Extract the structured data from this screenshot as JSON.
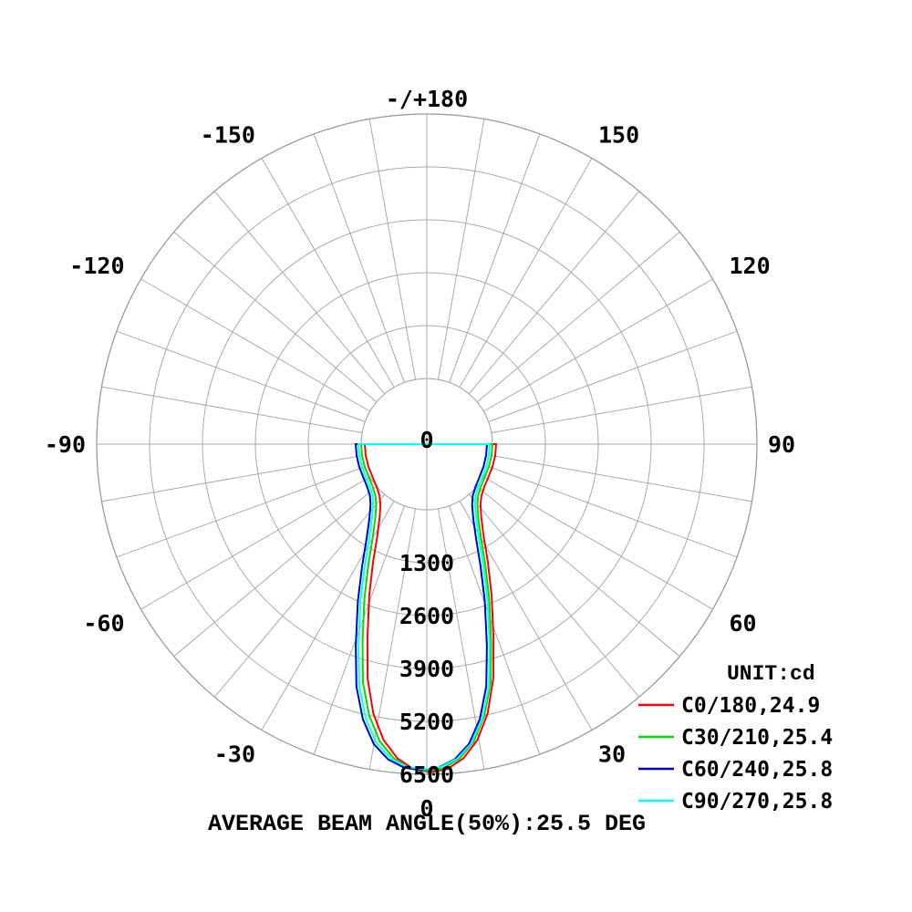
{
  "chart_data": {
    "type": "polar",
    "unit_label": "UNIT:cd",
    "footer": "AVERAGE BEAM ANGLE(50%):25.5 DEG",
    "angle_ticks": [
      {
        "angle": 180,
        "label": "-/+180"
      },
      {
        "angle": -150,
        "label": "-150"
      },
      {
        "angle": 150,
        "label": "150"
      },
      {
        "angle": -120,
        "label": "-120"
      },
      {
        "angle": 120,
        "label": "120"
      },
      {
        "angle": -90,
        "label": "-90"
      },
      {
        "angle": 90,
        "label": "90"
      },
      {
        "angle": -60,
        "label": "-60"
      },
      {
        "angle": 60,
        "label": "60"
      },
      {
        "angle": -30,
        "label": "-30"
      },
      {
        "angle": 30,
        "label": "30"
      },
      {
        "angle": 0,
        "label": "0"
      }
    ],
    "radial_ticks": [
      "0",
      "1300",
      "2600",
      "3900",
      "5200",
      "6500"
    ],
    "radial_values": [
      0,
      1300,
      2600,
      3900,
      5200,
      6500
    ],
    "r_max": 6500,
    "series": [
      {
        "name": "C0/180,24.9",
        "color": "#ff0000",
        "angles": [
          0,
          3,
          6,
          9,
          12,
          15,
          18,
          22,
          26,
          30,
          35,
          40,
          45,
          52,
          60,
          70,
          80,
          90
        ],
        "values": [
          6450,
          6380,
          6150,
          5750,
          5150,
          4350,
          3400,
          2400,
          1600,
          1000,
          560,
          300,
          160,
          70,
          25,
          8,
          2,
          0
        ]
      },
      {
        "name": "C30/210,25.4",
        "color": "#00dd00",
        "angles": [
          0,
          3,
          6,
          9,
          12,
          15,
          18,
          22,
          26,
          30,
          35,
          40,
          45,
          52,
          60,
          70,
          80,
          90
        ],
        "values": [
          6420,
          6360,
          6150,
          5780,
          5200,
          4450,
          3500,
          2480,
          1660,
          1050,
          590,
          320,
          170,
          75,
          28,
          9,
          2,
          0
        ]
      },
      {
        "name": "C60/240,25.8",
        "color": "#0000cc",
        "angles": [
          0,
          3,
          6,
          9,
          12,
          15,
          18,
          22,
          26,
          30,
          35,
          40,
          45,
          52,
          60,
          70,
          80,
          90
        ],
        "values": [
          6400,
          6350,
          6180,
          5850,
          5300,
          4550,
          3600,
          2550,
          1700,
          1080,
          610,
          330,
          175,
          78,
          30,
          10,
          3,
          0
        ]
      },
      {
        "name": "C90/270,25.8",
        "color": "#00ffff",
        "angles": [
          0,
          3,
          6,
          9,
          12,
          15,
          18,
          22,
          26,
          30,
          35,
          40,
          45,
          52,
          60,
          70,
          80,
          90
        ],
        "values": [
          6380,
          6330,
          6160,
          5830,
          5280,
          4540,
          3600,
          2560,
          1710,
          1090,
          620,
          335,
          178,
          80,
          31,
          10,
          3,
          0
        ]
      }
    ]
  }
}
